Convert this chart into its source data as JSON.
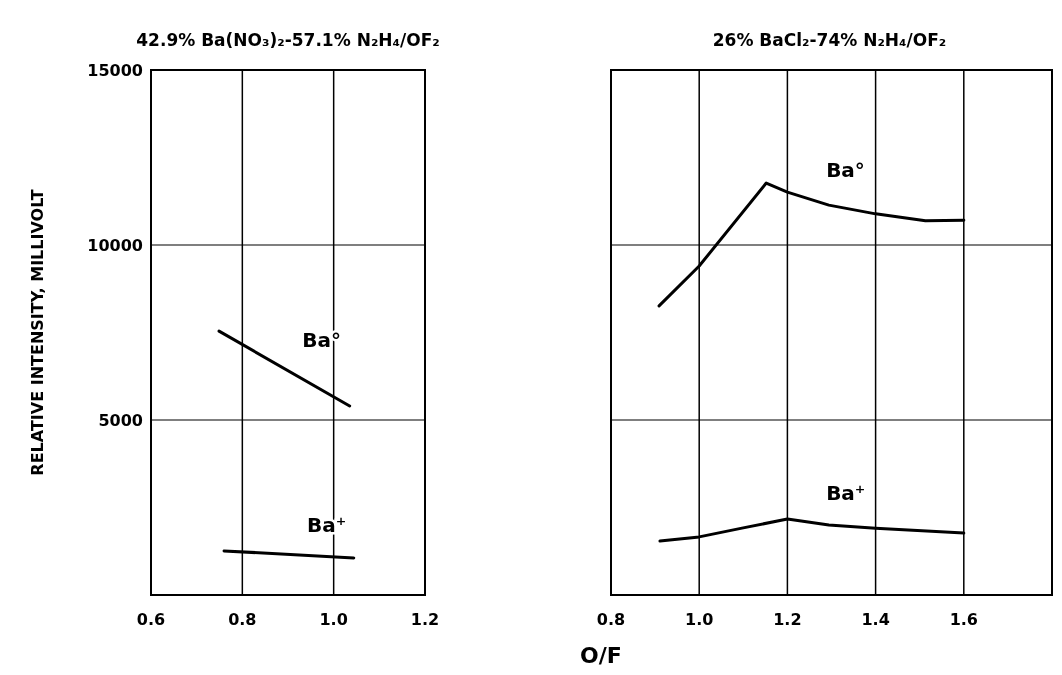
{
  "chart_data": [
    {
      "type": "line",
      "title": "42.9% Ba(NO₃)₂-57.1% N₂H₄/OF₂",
      "ylabel": "RELATIVE INTENSITY, MILLIVOLT",
      "xlim": [
        0.6,
        1.2
      ],
      "xticks": [
        0.6,
        0.8,
        {
          "value": 1.0,
          "label": "1.0"
        },
        1.2
      ],
      "ylim": [
        0,
        15000
      ],
      "yticks": [
        {
          "value": 0,
          "label": null
        },
        5000,
        10000,
        15000
      ],
      "grid": true,
      "marker": "none",
      "line_style": "solid",
      "series": [
        {
          "name": "Ba°",
          "color": "#000000",
          "x": [
            0.749,
            1.035
          ],
          "values": [
            7540,
            5400
          ]
        },
        {
          "name": "Ba⁺",
          "color": "#000000",
          "x": [
            0.76,
            1.044
          ],
          "values": [
            1260,
            1060
          ]
        }
      ]
    },
    {
      "type": "line",
      "title": "26% BaCl₂-74% N₂H₄/OF₂",
      "xlabel": "O/F",
      "xlim": [
        0.8,
        1.8
      ],
      "xticks": [
        0.8,
        {
          "value": 1.0,
          "label": "1.0"
        },
        1.2,
        1.4,
        1.6
      ],
      "ylim": [
        0,
        15000
      ],
      "yticks": [
        {
          "value": 0,
          "label": null
        },
        5000,
        10000,
        15000
      ],
      "tick_labels": "x",
      "grid": true,
      "marker": "none",
      "line_style": "solid",
      "series": [
        {
          "name": "Ba°",
          "color": "#000000",
          "x": [
            0.909,
            1.0,
            1.152,
            1.2,
            1.294,
            1.4,
            1.513,
            1.6
          ],
          "values": [
            8260,
            9400,
            11770,
            11510,
            11140,
            10890,
            10690,
            10710
          ]
        },
        {
          "name": "Ba⁺",
          "color": "#000000",
          "x": [
            0.911,
            1.0,
            1.097,
            1.2,
            1.294,
            1.4,
            1.6
          ],
          "values": [
            1540,
            1660,
            1910,
            2170,
            2000,
            1910,
            1770
          ]
        }
      ]
    }
  ]
}
